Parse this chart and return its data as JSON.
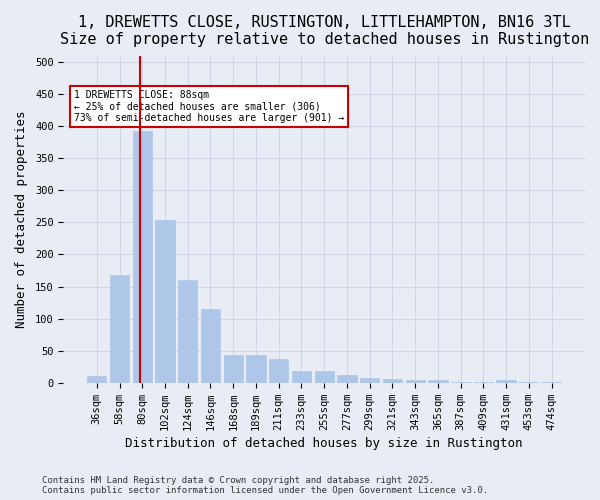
{
  "title": "1, DREWETTS CLOSE, RUSTINGTON, LITTLEHAMPTON, BN16 3TL",
  "subtitle": "Size of property relative to detached houses in Rustington",
  "xlabel": "Distribution of detached houses by size in Rustington",
  "ylabel": "Number of detached properties",
  "categories": [
    "36sqm",
    "58sqm",
    "80sqm",
    "102sqm",
    "124sqm",
    "146sqm",
    "168sqm",
    "189sqm",
    "211sqm",
    "233sqm",
    "255sqm",
    "277sqm",
    "299sqm",
    "321sqm",
    "343sqm",
    "365sqm",
    "387sqm",
    "409sqm",
    "431sqm",
    "453sqm",
    "474sqm"
  ],
  "values": [
    10,
    168,
    393,
    253,
    160,
    115,
    44,
    44,
    37,
    19,
    18,
    12,
    8,
    6,
    5,
    4,
    2,
    1,
    4,
    1,
    2
  ],
  "bar_color": "#aec6e8",
  "bar_edge_color": "#aec6e8",
  "grid_color": "#d0d8e8",
  "background_color": "#e8edf5",
  "vline_color": "#cc0000",
  "annotation_text": "1 DREWETTS CLOSE: 88sqm\n← 25% of detached houses are smaller (306)\n73% of semi-detached houses are larger (901) →",
  "annotation_box_color": "#ffffff",
  "annotation_box_edge_color": "#cc0000",
  "footer_text": "Contains HM Land Registry data © Crown copyright and database right 2025.\nContains public sector information licensed under the Open Government Licence v3.0.",
  "ylim": [
    0,
    510
  ],
  "yticks": [
    0,
    50,
    100,
    150,
    200,
    250,
    300,
    350,
    400,
    450,
    500
  ],
  "title_fontsize": 11,
  "xlabel_fontsize": 9,
  "ylabel_fontsize": 9,
  "tick_fontsize": 7.5,
  "footer_fontsize": 6.5
}
